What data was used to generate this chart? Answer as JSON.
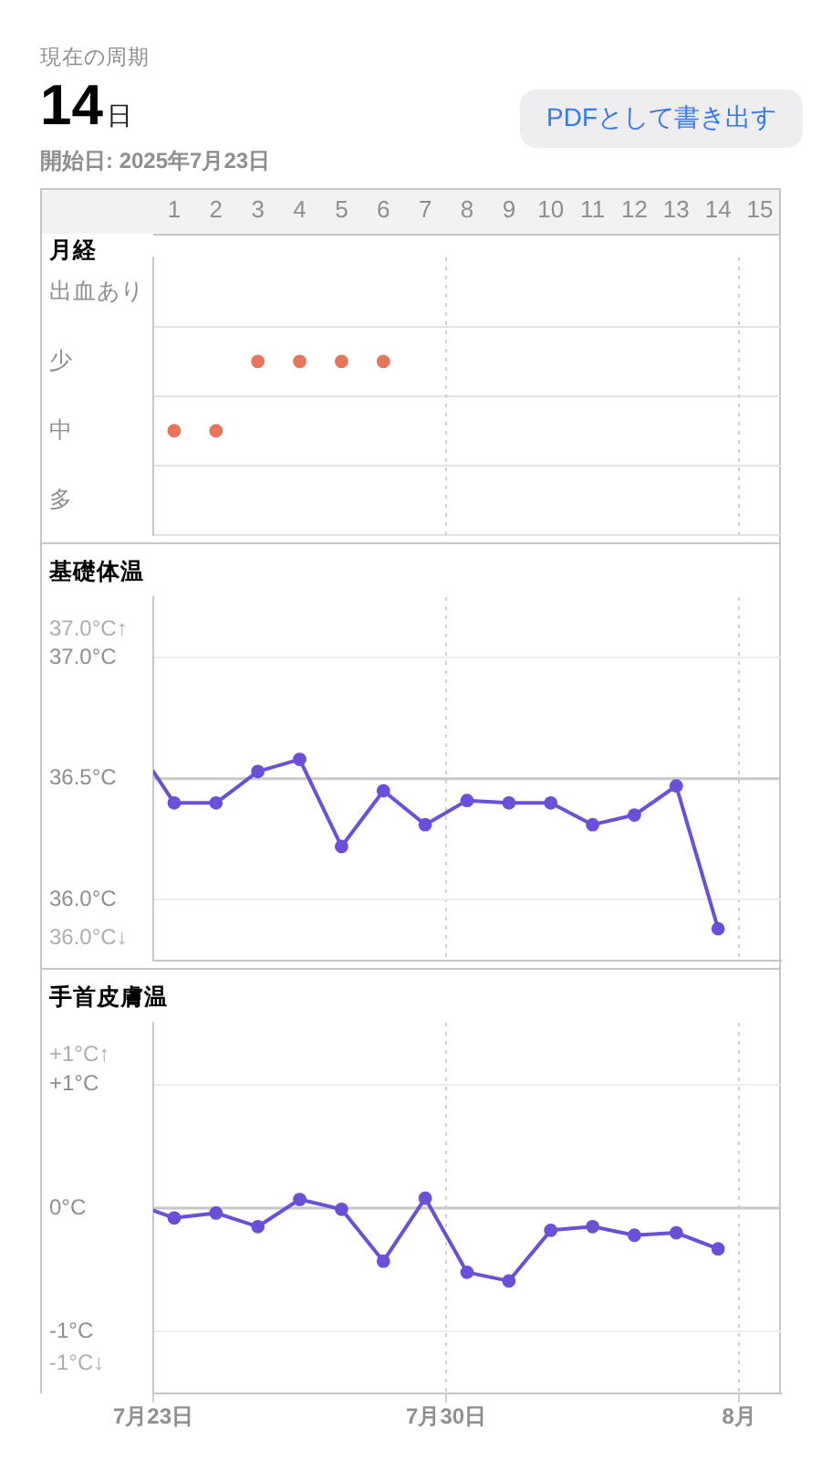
{
  "chart_data": [
    {
      "type": "scatter",
      "orientation": "horizontal",
      "title": "月経",
      "annotations": [
        "現在の周期",
        "14日",
        "開始日: 2025年7月23日",
        "PDFとして書き出す"
      ],
      "categories": [
        "出血あり",
        "少",
        "中",
        "多"
      ],
      "series": [
        {
          "color": "#e8745b",
          "values": [
            null,
            3,
            1,
            null
          ]
        },
        {
          "color": "#e8745b",
          "values": [
            null,
            4,
            2,
            null
          ]
        },
        {
          "color": "#e8745b",
          "values": [
            null,
            5,
            null,
            null
          ]
        },
        {
          "color": "#e8745b",
          "values": [
            null,
            6,
            null,
            null
          ]
        }
      ],
      "marker": "circle",
      "xlim": [
        0.5,
        15.5
      ],
      "xticks": [
        1,
        2,
        3,
        4,
        5,
        6,
        7,
        8,
        9,
        10,
        11,
        12,
        13,
        14,
        15
      ],
      "grid": "y",
      "ref_lines": [
        {
          "axis": "x",
          "value": 7.5,
          "color": "#cdcdd2",
          "line_style": "dotted"
        },
        {
          "axis": "x",
          "value": 14.5,
          "color": "#cdcdd2",
          "line_style": "dotted"
        }
      ]
    },
    {
      "type": "line",
      "title": "基礎体温",
      "annotations": [
        "37.0°C↑",
        "36.0°C↓"
      ],
      "x": [
        "2025-07-23",
        "2025-07-23T12:00",
        "2025-07-24T12:00",
        "2025-07-25T12:00",
        "2025-07-26T12:00",
        "2025-07-27T12:00",
        "2025-07-28T12:00",
        "2025-07-29T12:00",
        "2025-07-30T12:00",
        "2025-07-31T12:00",
        "2025-08-01T12:00",
        "2025-08-02T12:00",
        "2025-08-03T12:00",
        "2025-08-04T12:00",
        "2025-08-05T12:00"
      ],
      "values": [
        36.53,
        36.4,
        36.4,
        36.53,
        36.58,
        36.22,
        36.45,
        36.31,
        36.41,
        36.4,
        36.4,
        36.31,
        36.35,
        36.47,
        35.88
      ],
      "color": "#6c4fd8",
      "marker": "circle",
      "xlim": [
        "2025-07-23",
        "2025-08-07"
      ],
      "xticks": [
        "2025-07-23",
        "2025-07-30",
        "2025-08-06"
      ],
      "tick_labels": "y",
      "ylim": [
        35.75,
        37.25
      ],
      "yticks": [
        {
          "value": 36,
          "label": "36.0°C"
        },
        {
          "value": 36.5,
          "label": "36.5°C"
        },
        {
          "value": 37,
          "label": "37.0°C"
        }
      ],
      "grid": true,
      "ref_lines": [
        {
          "axis": "y",
          "value": 36.5,
          "color": "#c7c7cc"
        }
      ]
    },
    {
      "type": "line",
      "title": "手首皮膚温",
      "annotations": [
        "+1°C↑",
        "-1°C↓"
      ],
      "x": [
        "2025-07-23",
        "2025-07-23T12:00",
        "2025-07-24T12:00",
        "2025-07-25T12:00",
        "2025-07-26T12:00",
        "2025-07-27T12:00",
        "2025-07-28T12:00",
        "2025-07-29T12:00",
        "2025-07-30T12:00",
        "2025-07-31T12:00",
        "2025-08-01T12:00",
        "2025-08-02T12:00",
        "2025-08-03T12:00",
        "2025-08-04T12:00",
        "2025-08-05T12:00"
      ],
      "values": [
        -0.02,
        -0.08,
        -0.04,
        -0.15,
        0.07,
        -0.01,
        -0.43,
        0.08,
        -0.52,
        -0.59,
        -0.18,
        -0.15,
        -0.22,
        -0.2,
        -0.33
      ],
      "color": "#6c4fd8",
      "marker": "circle",
      "xlim": [
        "2025-07-23",
        "2025-08-07"
      ],
      "xticks": [
        {
          "value": "2025-07-23",
          "label": "7月23日"
        },
        {
          "value": "2025-07-30",
          "label": "7月30日"
        },
        {
          "value": "2025-08-06",
          "label": "8月"
        }
      ],
      "ylim": [
        -1.5,
        1.5
      ],
      "yticks": [
        {
          "value": -1,
          "label": "-1°C"
        },
        {
          "value": 0,
          "label": "0°C"
        },
        {
          "value": 1,
          "label": "+1°C"
        }
      ],
      "grid": true,
      "ref_lines": [
        {
          "axis": "y",
          "value": 0,
          "color": "#c7c7cc"
        }
      ]
    }
  ]
}
